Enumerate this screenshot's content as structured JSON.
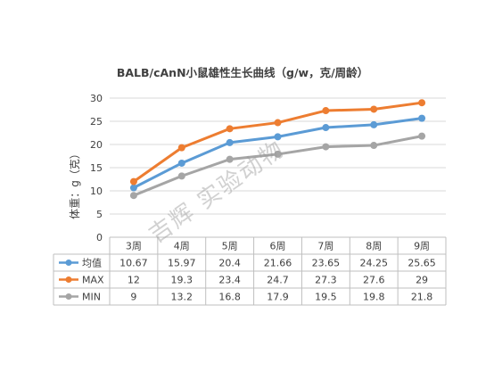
{
  "chart_data": {
    "type": "line",
    "title": "BALB/cAnN小鼠雄性生长曲线（g/w，克/周龄）",
    "ylabel": "体重：g（克）",
    "xlabel": "",
    "categories": [
      "3周",
      "4周",
      "5周",
      "6周",
      "7周",
      "8周",
      "9周"
    ],
    "ylim": [
      0,
      30
    ],
    "yticks": [
      "0",
      "5",
      "10",
      "15",
      "20",
      "25",
      "30"
    ],
    "grid": true,
    "legend": "data-table",
    "series": [
      {
        "name": "均值",
        "color": "#5b9bd5",
        "values": [
          10.67,
          15.97,
          20.4,
          21.66,
          23.65,
          24.25,
          25.65
        ]
      },
      {
        "name": "MAX",
        "color": "#ed7d31",
        "values": [
          12,
          19.3,
          23.4,
          24.7,
          27.3,
          27.6,
          29
        ]
      },
      {
        "name": "MIN",
        "color": "#a5a5a5",
        "values": [
          9,
          13.2,
          16.8,
          17.9,
          19.5,
          19.8,
          21.8
        ]
      }
    ],
    "table_rows": [
      [
        "10.67",
        "15.97",
        "20.4",
        "21.66",
        "23.65",
        "24.25",
        "25.65"
      ],
      [
        "12",
        "19.3",
        "23.4",
        "24.7",
        "27.3",
        "27.6",
        "29"
      ],
      [
        "9",
        "13.2",
        "16.8",
        "17.9",
        "19.5",
        "19.8",
        "21.8"
      ]
    ],
    "watermark": "吉辉 实验动物"
  }
}
